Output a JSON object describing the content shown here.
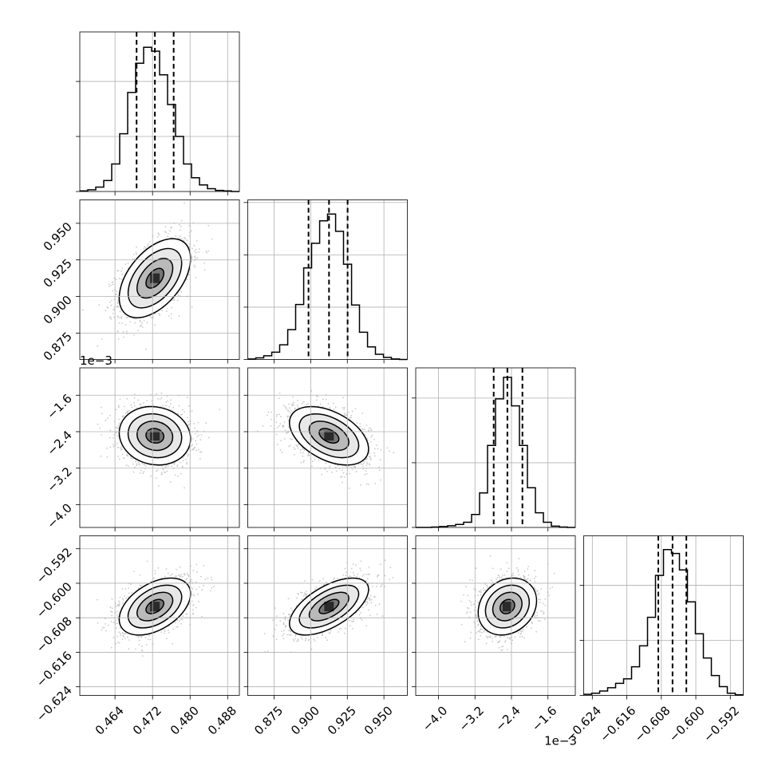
{
  "chart_data": {
    "type": "corner",
    "params": [
      {
        "range": [
          0.4565,
          0.4905
        ],
        "ticks": [
          "0.464",
          "0.472",
          "0.480",
          "0.488"
        ],
        "tick_values": [
          0.464,
          0.472,
          0.48,
          0.488
        ],
        "quantiles": [
          0.4686,
          0.4725,
          0.4765
        ],
        "median": 0.4725,
        "sigma": 0.0038,
        "offset_text": ""
      },
      {
        "range": [
          0.857,
          0.966
        ],
        "ticks": [
          "0.875",
          "0.900",
          "0.925",
          "0.950"
        ],
        "tick_values": [
          0.875,
          0.9,
          0.925,
          0.95
        ],
        "quantiles": [
          0.8985,
          0.9125,
          0.9252
        ],
        "median": 0.9125,
        "sigma": 0.0135,
        "offset_text": ""
      },
      {
        "range": [
          -4.5,
          -1.0
        ],
        "ticks": [
          "−4.0",
          "−3.2",
          "−2.4",
          "−1.6"
        ],
        "tick_values": [
          -4.0,
          -3.2,
          -2.4,
          -1.6
        ],
        "quantiles": [
          -2.79,
          -2.49,
          -2.16
        ],
        "median": -2.49,
        "sigma": 0.32,
        "offset_text": "1e−3"
      },
      {
        "range": [
          -0.626,
          -0.589
        ],
        "ticks": [
          "−0.624",
          "−0.616",
          "−0.608",
          "−0.600",
          "−0.592"
        ],
        "tick_values": [
          -0.624,
          -0.616,
          -0.608,
          -0.6,
          -0.592
        ],
        "quantiles": [
          -0.6087,
          -0.6054,
          -0.6022
        ],
        "median": -0.6054,
        "sigma": 0.0033,
        "offset_text": ""
      }
    ],
    "histograms": [
      {
        "bin_edges": [
          0.4565,
          0.4582,
          0.4599,
          0.4616,
          0.4633,
          0.465,
          0.4667,
          0.4684,
          0.4701,
          0.4718,
          0.4735,
          0.4752,
          0.4769,
          0.4786,
          0.4803,
          0.482,
          0.4837,
          0.4854,
          0.4871,
          0.4888,
          0.4905
        ],
        "counts": [
          1,
          3,
          8,
          20,
          50,
          105,
          180,
          233,
          262,
          255,
          212,
          158,
          100,
          50,
          25,
          12,
          5,
          2,
          1,
          0
        ],
        "ymax": 290
      },
      {
        "bin_edges": [
          0.857,
          0.8625,
          0.8679,
          0.8734,
          0.8788,
          0.8843,
          0.8897,
          0.8952,
          0.9006,
          0.9061,
          0.9115,
          0.917,
          0.9224,
          0.9279,
          0.9333,
          0.9388,
          0.9442,
          0.9497,
          0.9551,
          0.9606,
          0.966
        ],
        "counts": [
          1,
          3,
          7,
          14,
          28,
          57,
          105,
          175,
          222,
          265,
          278,
          245,
          182,
          104,
          52,
          24,
          10,
          4,
          1,
          0
        ],
        "ymax": 305
      },
      {
        "bin_edges": [
          -4.5,
          -4.325,
          -4.15,
          -3.975,
          -3.8,
          -3.625,
          -3.45,
          -3.275,
          -3.1,
          -2.925,
          -2.75,
          -2.575,
          -2.4,
          -2.225,
          -2.05,
          -1.875,
          -1.7,
          -1.525,
          -1.35,
          -1.175,
          -1.0
        ],
        "counts": [
          0,
          0,
          1,
          2,
          4,
          7,
          12,
          30,
          80,
          190,
          298,
          348,
          282,
          190,
          92,
          34,
          12,
          3,
          1,
          0
        ],
        "ymax": 370
      },
      {
        "bin_edges": [
          -0.626,
          -0.62415,
          -0.6223,
          -0.62045,
          -0.6186,
          -0.61675,
          -0.6149,
          -0.61305,
          -0.6112,
          -0.60935,
          -0.6075,
          -0.60565,
          -0.6038,
          -0.60195,
          -0.6001,
          -0.59825,
          -0.5964,
          -0.59455,
          -0.5927,
          -0.59085,
          -0.589
        ],
        "counts": [
          2,
          4,
          8,
          14,
          22,
          30,
          52,
          90,
          142,
          218,
          265,
          258,
          228,
          170,
          112,
          68,
          36,
          16,
          4,
          1
        ],
        "ymax": 290
      }
    ],
    "pairs": [
      {
        "x": 0,
        "y": 1,
        "rho": 0.5
      },
      {
        "x": 0,
        "y": 2,
        "rho": -0.1
      },
      {
        "x": 1,
        "y": 2,
        "rho": -0.45
      },
      {
        "x": 0,
        "y": 3,
        "rho": 0.45
      },
      {
        "x": 1,
        "y": 3,
        "rho": 0.6
      },
      {
        "x": 2,
        "y": 3,
        "rho": 0.2
      }
    ],
    "contour_levels": [
      "0.5σ",
      "1σ",
      "1.5σ",
      "2σ"
    ],
    "grid": true,
    "colors": {
      "hist_line": "#000000",
      "points": "#9e9e9e",
      "contour": "#000000",
      "grid": "#b0b0b0",
      "density": "#000000"
    }
  }
}
